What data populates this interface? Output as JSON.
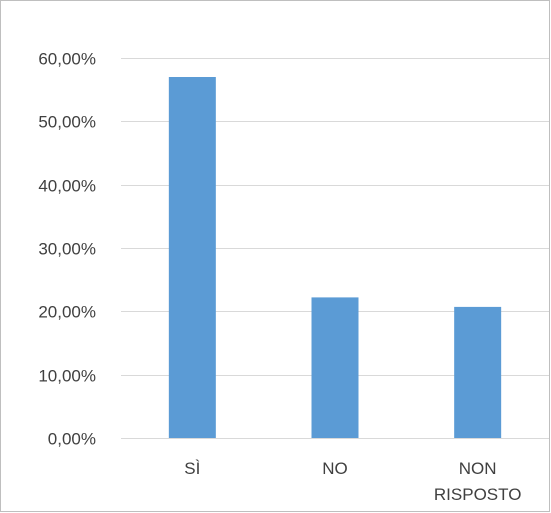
{
  "chart_data": {
    "type": "bar",
    "title": "",
    "xlabel": "",
    "ylabel": "",
    "categories": [
      "SÌ",
      "NO",
      "NON RISPOSTO"
    ],
    "category_lines": [
      [
        "SÌ"
      ],
      [
        "NO"
      ],
      [
        "NON",
        "RISPOSTO"
      ]
    ],
    "values": [
      0.57,
      0.222,
      0.207
    ],
    "ylim": [
      0,
      0.6
    ],
    "yticks": [
      0,
      0.1,
      0.2,
      0.3,
      0.4,
      0.5,
      0.6
    ],
    "ytick_labels": [
      "0,00%",
      "10,00%",
      "20,00%",
      "30,00%",
      "40,00%",
      "50,00%",
      "60,00%"
    ],
    "grid": true,
    "legend": "none",
    "bar_color": "#5b9bd5",
    "grid_color": "#d9d9d9",
    "border_color": "#bfbfbf",
    "text_color": "#404040"
  }
}
